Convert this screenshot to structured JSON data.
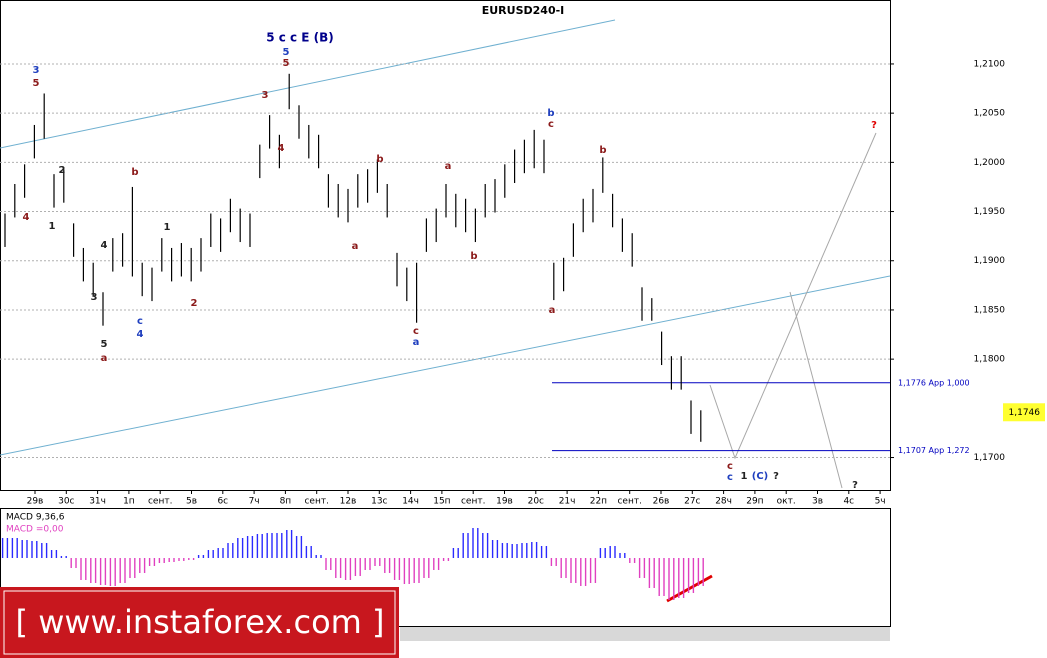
{
  "chart_data": {
    "type": "ohlc",
    "title": "EURUSD240-I",
    "categories": [
      "29в",
      "30с",
      "31ч",
      "1п",
      "сент.",
      "5в",
      "6с",
      "7ч",
      "8п",
      "сент.",
      "12в",
      "13с",
      "14ч",
      "15п",
      "сент.",
      "19в",
      "20с",
      "21ч",
      "22п",
      "сент.",
      "26в",
      "27с",
      "28ч",
      "29п",
      "окт.",
      "3в",
      "4с",
      "5ч"
    ],
    "high": [
      1.1948,
      1.1978,
      1.1998,
      1.2038,
      1.207,
      1.1988,
      1.1993,
      1.1938,
      1.1913,
      1.1898,
      1.1868,
      1.1923,
      1.1928,
      1.1975,
      1.1898,
      1.1893,
      1.1923,
      1.1913,
      1.1918,
      1.1913,
      1.1923,
      1.1948,
      1.1943,
      1.1963,
      1.1953,
      1.1948,
      1.2018,
      1.2048,
      1.2028,
      1.209,
      1.2058,
      1.2038,
      1.2028,
      1.1988,
      1.1978,
      1.1973,
      1.1988,
      1.1993,
      1.2003,
      1.1978,
      1.1908,
      1.1893,
      1.1898,
      1.1943,
      1.1953,
      1.1978,
      1.1968,
      1.1963,
      1.1953,
      1.1978,
      1.1983,
      1.1998,
      1.2013,
      1.2023,
      1.2033,
      1.2023,
      1.1898,
      1.1903,
      1.1938,
      1.1963,
      1.1973,
      1.2005,
      1.1968,
      1.1943,
      1.1928,
      1.1873,
      1.1862,
      1.1828,
      1.1803,
      1.1803,
      1.1758,
      1.1748
    ],
    "low": [
      1.1914,
      1.1944,
      1.1964,
      1.2004,
      1.2024,
      1.1954,
      1.1959,
      1.1904,
      1.1879,
      1.1864,
      1.1834,
      1.1889,
      1.1894,
      1.1884,
      1.1864,
      1.1859,
      1.1889,
      1.1879,
      1.1884,
      1.1879,
      1.1889,
      1.1914,
      1.1909,
      1.1929,
      1.1919,
      1.1914,
      1.1984,
      1.2014,
      1.1994,
      1.2054,
      1.2024,
      1.2004,
      1.1994,
      1.1954,
      1.1944,
      1.1939,
      1.1954,
      1.1959,
      1.1969,
      1.1944,
      1.1874,
      1.1859,
      1.1837,
      1.1909,
      1.1919,
      1.1944,
      1.1934,
      1.1929,
      1.1919,
      1.1944,
      1.1949,
      1.1964,
      1.1979,
      1.1989,
      1.1994,
      1.1989,
      1.186,
      1.1869,
      1.1904,
      1.1929,
      1.1939,
      1.1969,
      1.1934,
      1.1909,
      1.1894,
      1.1839,
      1.1839,
      1.1794,
      1.1769,
      1.1769,
      1.1724,
      1.1716
    ],
    "ylim": [
      1.1667,
      1.2165
    ],
    "yticks": [
      {
        "value": 1.21,
        "label": "1,2100"
      },
      {
        "value": 1.205,
        "label": "1,2050"
      },
      {
        "value": 1.2,
        "label": "1,2000"
      },
      {
        "value": 1.195,
        "label": "1,1950"
      },
      {
        "value": 1.19,
        "label": "1,1900"
      },
      {
        "value": 1.185,
        "label": "1,1850"
      },
      {
        "value": 1.18,
        "label": "1,1800"
      },
      {
        "value": 1.17,
        "label": "1,1700"
      }
    ],
    "grid": true,
    "current_price": {
      "value": 1.1746,
      "label": "1,1746"
    },
    "levels": [
      {
        "value": 1.1776,
        "label": "1,1776 App 1,000"
      },
      {
        "value": 1.1707,
        "label": "1,1707 App 1,272"
      }
    ],
    "annotations": [
      {
        "text": "5 c c E (B)",
        "color": "#00008b"
      },
      {
        "text": "3",
        "color": "#1f3fbf"
      },
      {
        "text": "5",
        "color": "#8b1a1a"
      },
      {
        "text": "4",
        "color": "#8b1a1a"
      },
      {
        "text": "1",
        "color": "#222"
      },
      {
        "text": "2",
        "color": "#222"
      },
      {
        "text": "4",
        "color": "#222"
      },
      {
        "text": "3",
        "color": "#222"
      },
      {
        "text": "5",
        "color": "#222"
      },
      {
        "text": "a",
        "color": "#8b1a1a"
      },
      {
        "text": "b",
        "color": "#8b1a1a"
      },
      {
        "text": "c",
        "color": "#1f3fbf"
      },
      {
        "text": "4",
        "color": "#1f3fbf"
      },
      {
        "text": "1",
        "color": "#222"
      },
      {
        "text": "2",
        "color": "#8b1a1a"
      },
      {
        "text": "5",
        "color": "#1f3fbf"
      },
      {
        "text": "5",
        "color": "#8b1a1a"
      },
      {
        "text": "3",
        "color": "#8b1a1a"
      },
      {
        "text": "4",
        "color": "#8b1a1a"
      },
      {
        "text": "b",
        "color": "#8b1a1a"
      },
      {
        "text": "a",
        "color": "#8b1a1a"
      },
      {
        "text": "a",
        "color": "#8b1a1a"
      },
      {
        "text": "b",
        "color": "#8b1a1a"
      },
      {
        "text": "c",
        "color": "#8b1a1a"
      },
      {
        "text": "a",
        "color": "#1f3fbf"
      },
      {
        "text": "b",
        "color": "#1f3fbf"
      },
      {
        "text": "c",
        "color": "#8b1a1a"
      },
      {
        "text": "a",
        "color": "#8b1a1a"
      },
      {
        "text": "b",
        "color": "#8b1a1a"
      },
      {
        "text": "?",
        "color": "#e00000"
      },
      {
        "text": "c",
        "color": "#8b1a1a"
      },
      {
        "text": "c",
        "color": "#1f3fbf"
      },
      {
        "text": "1",
        "color": "#222"
      },
      {
        "text": "(C)",
        "color": "#1f3fbf"
      },
      {
        "text": "?",
        "color": "#222"
      },
      {
        "text": "?",
        "color": "#222"
      }
    ],
    "macd": {
      "label": "MACD 9,36,6",
      "signal_label": "MACD =0,00",
      "color": "#2a2aff",
      "negative_color": "#e040c0",
      "ylim": [
        -0.0068,
        0.0049
      ],
      "values": [
        0.002,
        0.002,
        0.0018,
        0.0017,
        0.0015,
        0.0008,
        0.0002,
        -0.001,
        -0.0022,
        -0.0025,
        -0.0027,
        -0.0028,
        -0.0025,
        -0.002,
        -0.0015,
        -0.0008,
        -0.0005,
        -0.0004,
        -0.0003,
        -0.0002,
        0.0003,
        0.0008,
        0.001,
        0.0015,
        0.002,
        0.0022,
        0.0024,
        0.0025,
        0.0025,
        0.0028,
        0.0022,
        0.0012,
        0.0003,
        -0.0012,
        -0.002,
        -0.0022,
        -0.0018,
        -0.0012,
        -0.0008,
        -0.0015,
        -0.0022,
        -0.0026,
        -0.0025,
        -0.002,
        -0.0012,
        -0.0003,
        0.001,
        0.0025,
        0.003,
        0.0025,
        0.0018,
        0.0015,
        0.0014,
        0.0015,
        0.0016,
        0.0012,
        -0.0008,
        -0.002,
        -0.0025,
        -0.0028,
        -0.0025,
        0.001,
        0.0012,
        0.0005,
        -0.0005,
        -0.002,
        -0.003,
        -0.0038,
        -0.0042,
        -0.004,
        -0.0035,
        -0.0028
      ]
    },
    "watermark": "[ www.instaforex.com ]"
  }
}
